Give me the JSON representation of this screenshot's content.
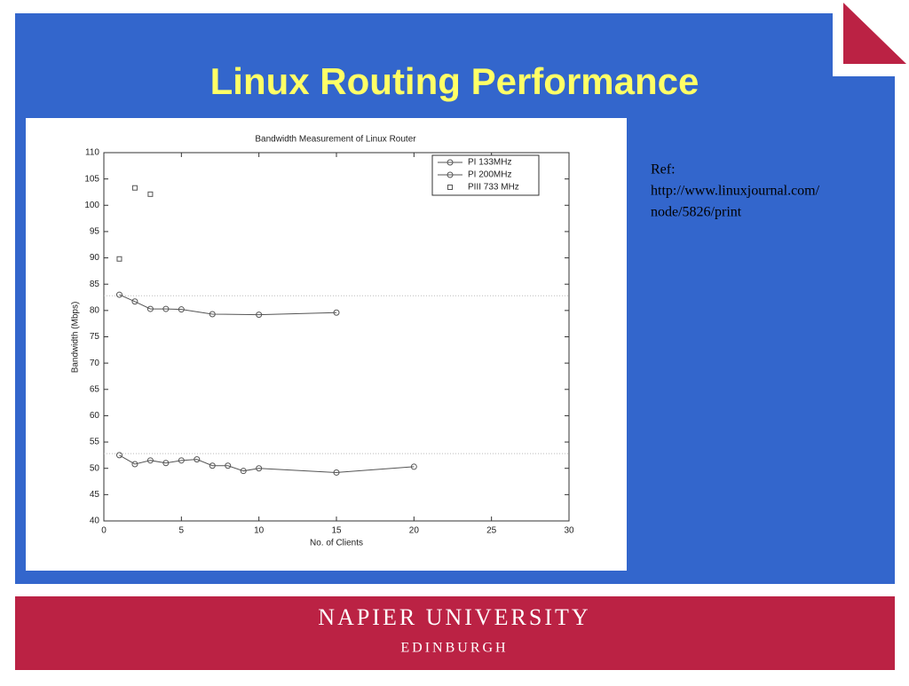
{
  "slide": {
    "title": "Linux Routing Performance",
    "ref_lines": [
      "Ref:",
      "http://www.linuxjournal.com/",
      "node/5826/print"
    ],
    "footer": {
      "name": "NAPIER UNIVERSITY",
      "city": "EDINBURGH"
    }
  },
  "chart_data": {
    "type": "line",
    "title": "Bandwidth Measurement of Linux Router",
    "x_label": "No. of Clients",
    "y_label": "Bandwidth (Mbps)",
    "xlim": [
      0,
      30
    ],
    "ylim": [
      40,
      110
    ],
    "xticks": [
      0,
      5,
      10,
      15,
      20,
      25,
      30
    ],
    "yticks": [
      40,
      45,
      50,
      55,
      60,
      65,
      70,
      75,
      80,
      85,
      90,
      95,
      100,
      105,
      110
    ],
    "grid": false,
    "legend": "upper right",
    "hlines": [
      82.8,
      52.8
    ],
    "series": [
      {
        "name": "PI 133MHz",
        "color": "#555555",
        "marker": "circle",
        "line": true,
        "x": [
          1,
          2,
          3,
          4,
          5,
          6,
          7,
          8,
          9,
          10,
          15,
          20
        ],
        "values": [
          52.5,
          50.8,
          51.5,
          51,
          51.5,
          51.7,
          50.5,
          50.5,
          49.5,
          50,
          49.2,
          50.3
        ]
      },
      {
        "name": "PI 200MHz",
        "color": "#555555",
        "marker": "circle",
        "line": true,
        "x": [
          1,
          2,
          3,
          4,
          5,
          7,
          10,
          15
        ],
        "values": [
          83,
          81.7,
          80.3,
          80.3,
          80.2,
          79.3,
          79.2,
          79.6
        ]
      },
      {
        "name": "PIII 733 MHz",
        "color": "#555555",
        "marker": "square",
        "line": false,
        "x": [
          1,
          2,
          3
        ],
        "values": [
          89.8,
          103.3,
          102.1
        ]
      }
    ]
  }
}
